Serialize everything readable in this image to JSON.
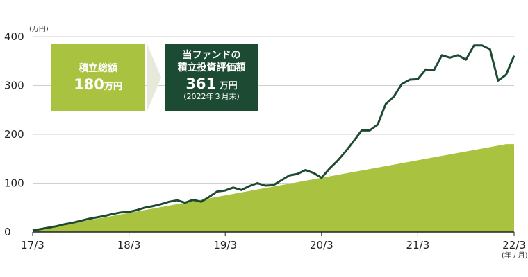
{
  "chart_data": {
    "type": "area",
    "xlabel": "",
    "ylabel": "",
    "y_unit_label": "(万円)",
    "x_unit_label": "(年 / 月)",
    "ylim": [
      0,
      400
    ],
    "yticks": [
      0,
      100,
      200,
      300,
      400
    ],
    "x_tick_labels": [
      "17/3",
      "18/3",
      "19/3",
      "20/3",
      "21/3",
      "22/3"
    ],
    "grid": true,
    "series": [
      {
        "kind": "area",
        "color": "#a9c23f",
        "x": [
          "2017-03",
          "2022-02",
          "2022-03"
        ],
        "values": [
          3,
          180,
          180
        ]
      },
      {
        "kind": "line",
        "color": "#1c4a33",
        "x": [
          "2017-03",
          "2017-04",
          "2017-05",
          "2017-06",
          "2017-07",
          "2017-08",
          "2017-09",
          "2017-10",
          "2017-11",
          "2017-12",
          "2018-01",
          "2018-02",
          "2018-03",
          "2018-04",
          "2018-05",
          "2018-06",
          "2018-07",
          "2018-08",
          "2018-09",
          "2018-10",
          "2018-11",
          "2018-12",
          "2019-01",
          "2019-02",
          "2019-03",
          "2019-04",
          "2019-05",
          "2019-06",
          "2019-07",
          "2019-08",
          "2019-09",
          "2019-10",
          "2019-11",
          "2019-12",
          "2020-01",
          "2020-02",
          "2020-03",
          "2020-04",
          "2020-05",
          "2020-06",
          "2020-07",
          "2020-08",
          "2020-09",
          "2020-10",
          "2020-11",
          "2020-12",
          "2021-01",
          "2021-02",
          "2021-03",
          "2021-04",
          "2021-05",
          "2021-06",
          "2021-07",
          "2021-08",
          "2021-09",
          "2021-10",
          "2021-11",
          "2021-12",
          "2022-01",
          "2022-02",
          "2022-03"
        ],
        "values": [
          3,
          6,
          9,
          12,
          16,
          19,
          23,
          27,
          30,
          33,
          37,
          40,
          41,
          45,
          50,
          53,
          57,
          62,
          65,
          60,
          66,
          62,
          72,
          83,
          85,
          91,
          86,
          94,
          100,
          95,
          96,
          106,
          116,
          119,
          127,
          121,
          111,
          130,
          146,
          165,
          186,
          208,
          208,
          220,
          262,
          277,
          303,
          312,
          313,
          333,
          331,
          362,
          357,
          362,
          353,
          382,
          382,
          374,
          310,
          322,
          361
        ]
      }
    ],
    "annotations": {
      "cumulative_label": "積立総額",
      "cumulative_value": "180",
      "cumulative_unit": "万円",
      "fund_label_line1": "当ファンドの",
      "fund_label_line2": "積立投資評価額",
      "fund_value": "361",
      "fund_unit": " 万円",
      "fund_date": "（2022年３月末）"
    }
  }
}
